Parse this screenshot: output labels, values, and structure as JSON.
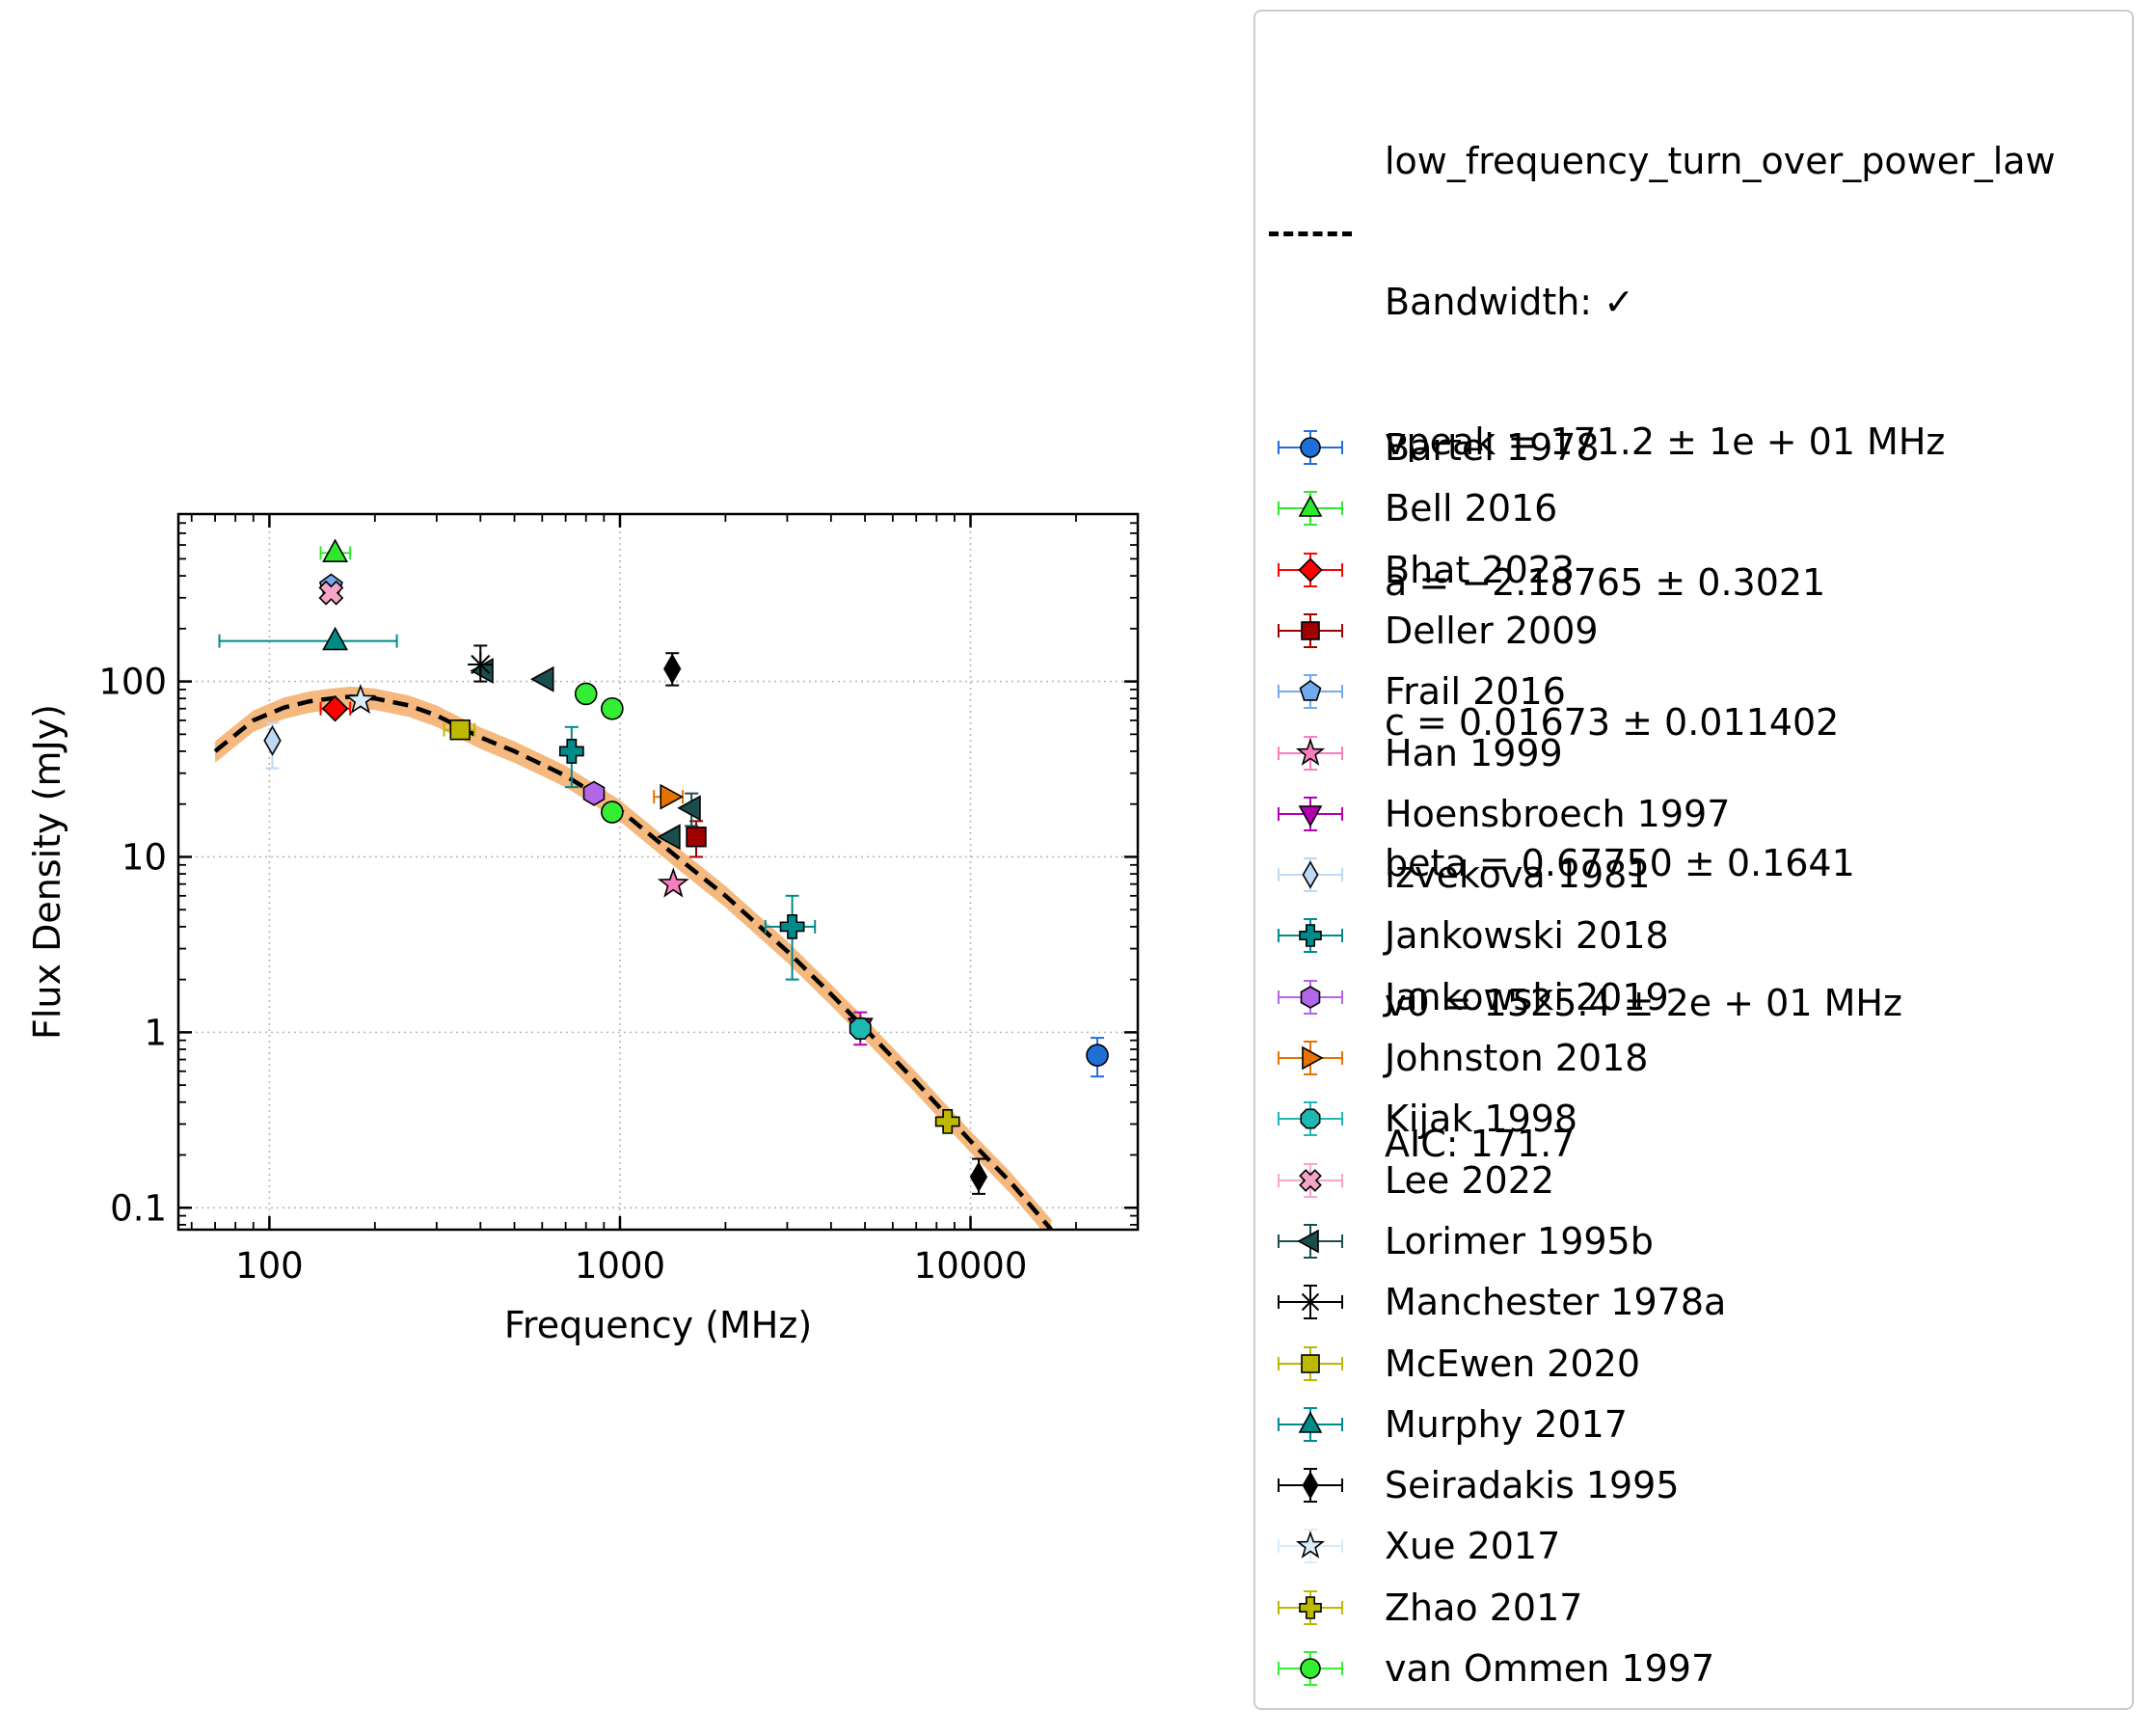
{
  "chart_data": {
    "type": "scatter",
    "xlabel": "Frequency (MHz)",
    "ylabel": "Flux Density (mJy)",
    "xscale": "log",
    "yscale": "log",
    "xlim": [
      55,
      30000
    ],
    "ylim": [
      0.075,
      900
    ],
    "x_ticks": [
      100,
      1000,
      10000
    ],
    "x_tick_labels": [
      "100",
      "1000",
      "10000"
    ],
    "y_ticks": [
      0.1,
      1,
      10,
      100
    ],
    "y_tick_labels": [
      "0.1",
      "1",
      "10",
      "100"
    ],
    "grid": true,
    "legend_position": "outside-right",
    "fit": {
      "label_lines": [
        "low_frequency_turn_over_power_law",
        "Bandwidth: ✓",
        "vpeak = 171.2 ± 1e + 01 MHz",
        "a = −2.18765 ± 0.3021",
        "c = 0.01673 ± 0.011402",
        "beta = 0.67750 ± 0.1641",
        "v0 = 1525.4 ± 2e + 01 MHz",
        "AIC: 171.7"
      ],
      "curve_x": [
        70,
        90,
        110,
        130,
        150,
        171,
        200,
        250,
        300,
        400,
        500,
        700,
        1000,
        1500,
        2000,
        3000,
        4000,
        5000,
        7000,
        10000,
        13000,
        17000
      ],
      "curve_y": [
        40,
        60,
        71,
        77,
        80,
        82,
        80,
        73,
        64,
        48,
        40,
        29,
        18.5,
        9.5,
        6.0,
        2.9,
        1.65,
        1.05,
        0.52,
        0.24,
        0.14,
        0.075
      ],
      "band_frac": 0.14,
      "color": "#000000",
      "band_color": "#f5b97f"
    },
    "series": [
      {
        "name": "Bartel 1978",
        "marker": "circle",
        "color": "#1f6fd6",
        "points": [
          {
            "x": 23000,
            "y": 0.74,
            "ylo": 0.56,
            "yhi": 0.93
          }
        ]
      },
      {
        "name": "Bell 2016",
        "marker": "triangle-up",
        "color": "#2ee82e",
        "points": [
          {
            "x": 154,
            "y": 540,
            "xlo": 140,
            "xhi": 170
          }
        ]
      },
      {
        "name": "Bhat 2023",
        "marker": "diamond",
        "color": "#ff0000",
        "points": [
          {
            "x": 154,
            "y": 70,
            "xlo": 140,
            "xhi": 170
          }
        ]
      },
      {
        "name": "Deller 2009",
        "marker": "square",
        "color": "#a00000",
        "points": [
          {
            "x": 1650,
            "y": 13,
            "ylo": 10,
            "yhi": 16
          }
        ]
      },
      {
        "name": "Frail 2016",
        "marker": "pentagon",
        "color": "#72aaf0",
        "points": [
          {
            "x": 150,
            "y": 350
          }
        ]
      },
      {
        "name": "Han 1999",
        "marker": "star",
        "color": "#f77fbf",
        "points": [
          {
            "x": 1420,
            "y": 7.0
          }
        ]
      },
      {
        "name": "Hoensbroech 1997",
        "marker": "triangle-down",
        "color": "#b300b3",
        "points": [
          {
            "x": 4850,
            "y": 1.07,
            "ylo": 0.85,
            "yhi": 1.3
          }
        ]
      },
      {
        "name": "Izvekova 1981",
        "marker": "thin-diamond",
        "color": "#bcd9f5",
        "points": [
          {
            "x": 102,
            "y": 46,
            "ylo": 32,
            "yhi": 58
          }
        ]
      },
      {
        "name": "Jankowski 2018",
        "marker": "plus-filled",
        "color": "#008b8b",
        "points": [
          {
            "x": 728,
            "y": 40,
            "ylo": 25,
            "yhi": 55
          },
          {
            "x": 3100,
            "y": 4.0,
            "xlo": 2600,
            "xhi": 3600,
            "ylo": 2.0,
            "yhi": 6.0
          }
        ]
      },
      {
        "name": "Jankowski 2019",
        "marker": "hexagon",
        "color": "#b266e8",
        "points": [
          {
            "x": 843,
            "y": 23
          }
        ]
      },
      {
        "name": "Johnston 2018",
        "marker": "triangle-right",
        "color": "#e67300",
        "points": [
          {
            "x": 1382,
            "y": 22,
            "xlo": 1250,
            "xhi": 1510
          }
        ]
      },
      {
        "name": "Kijak 1998",
        "marker": "octagon",
        "color": "#1fb8b0",
        "points": [
          {
            "x": 4850,
            "y": 1.05
          }
        ]
      },
      {
        "name": "Lee 2022",
        "marker": "x-filled",
        "color": "#f5a6c8",
        "points": [
          {
            "x": 150,
            "y": 320
          }
        ]
      },
      {
        "name": "Lorimer 1995b",
        "marker": "triangle-left",
        "color": "#1b4d4d",
        "points": [
          {
            "x": 410,
            "y": 115
          },
          {
            "x": 610,
            "y": 103
          },
          {
            "x": 1400,
            "y": 13
          },
          {
            "x": 1600,
            "y": 19,
            "ylo": 15,
            "yhi": 23
          }
        ]
      },
      {
        "name": "Manchester 1978a",
        "marker": "star-lines",
        "color": "#000000",
        "points": [
          {
            "x": 400,
            "y": 125,
            "ylo": 100,
            "yhi": 160
          }
        ]
      },
      {
        "name": "McEwen 2020",
        "marker": "square",
        "color": "#bdb800",
        "points": [
          {
            "x": 350,
            "y": 53,
            "xlo": 315,
            "xhi": 385
          }
        ]
      },
      {
        "name": "Murphy 2017",
        "marker": "triangle-up",
        "color": "#008b8b",
        "points": [
          {
            "x": 154,
            "y": 170,
            "xlo": 72,
            "xhi": 231
          }
        ]
      },
      {
        "name": "Seiradakis 1995",
        "marker": "thin-diamond",
        "color": "#000000",
        "points": [
          {
            "x": 1410,
            "y": 118,
            "ylo": 95,
            "yhi": 145
          },
          {
            "x": 10550,
            "y": 0.15,
            "ylo": 0.12,
            "yhi": 0.19
          }
        ]
      },
      {
        "name": "Xue 2017",
        "marker": "star",
        "color": "#d9ecfb",
        "points": [
          {
            "x": 182,
            "y": 78
          }
        ]
      },
      {
        "name": "Zhao 2017",
        "marker": "plus-filled",
        "color": "#bdb800",
        "points": [
          {
            "x": 8600,
            "y": 0.31
          }
        ]
      },
      {
        "name": "van Ommen 1997",
        "marker": "circle",
        "color": "#33ee33",
        "points": [
          {
            "x": 800,
            "y": 85
          },
          {
            "x": 950,
            "y": 70
          },
          {
            "x": 950,
            "y": 18
          }
        ]
      }
    ]
  }
}
